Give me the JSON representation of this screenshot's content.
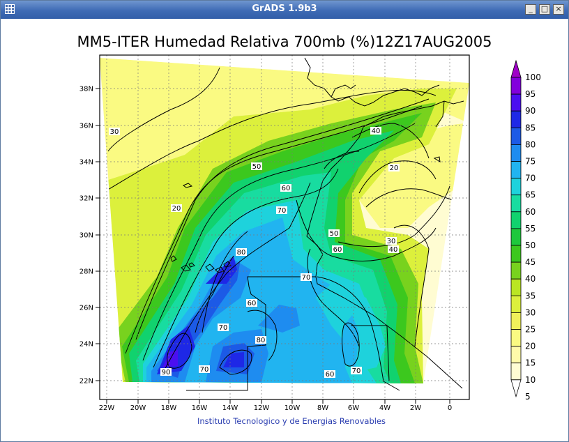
{
  "window": {
    "title": "GrADS 1.9b3",
    "buttons": {
      "minimize": "_",
      "maximize": "□",
      "close": "×"
    }
  },
  "map": {
    "title": "MM5-ITER Humedad Relativa 700mb (%)12Z17AUG2005",
    "credit": "Instituto Tecnologico y de Energias Renovables",
    "lat_labels": [
      "38N",
      "36N",
      "34N",
      "32N",
      "30N",
      "28N",
      "26N",
      "24N",
      "22N"
    ],
    "lon_labels": [
      "22W",
      "20W",
      "18W",
      "16W",
      "14W",
      "12W",
      "10W",
      "8W",
      "6W",
      "4W",
      "2W",
      "0"
    ],
    "colorbar": {
      "levels": [
        "100",
        "95",
        "90",
        "85",
        "80",
        "75",
        "70",
        "65",
        "60",
        "55",
        "50",
        "45",
        "40",
        "35",
        "30",
        "25",
        "20",
        "15",
        "10",
        "5"
      ],
      "colors": [
        "#a000c8",
        "#8200dc",
        "#4b0ff0",
        "#1e28e6",
        "#1c5ae6",
        "#1e8cf0",
        "#21b4f0",
        "#1ed2dc",
        "#18dca0",
        "#11d26e",
        "#1ec83c",
        "#3cc81e",
        "#78d21e",
        "#bae623",
        "#dcf03c",
        "#f0f05a",
        "#fafa82",
        "#fffaaa",
        "#fffcd2",
        "#ffffff"
      ]
    },
    "contour_labels": [
      {
        "text": "30"
      },
      {
        "text": "40"
      },
      {
        "text": "20"
      },
      {
        "text": "50"
      },
      {
        "text": "60"
      },
      {
        "text": "20"
      },
      {
        "text": "70"
      },
      {
        "text": "50"
      },
      {
        "text": "30"
      },
      {
        "text": "60"
      },
      {
        "text": "40"
      },
      {
        "text": "80"
      },
      {
        "text": "70"
      },
      {
        "text": "60"
      },
      {
        "text": "70"
      },
      {
        "text": "80"
      },
      {
        "text": "90"
      },
      {
        "text": "70"
      },
      {
        "text": "60"
      },
      {
        "text": "70"
      }
    ]
  }
}
